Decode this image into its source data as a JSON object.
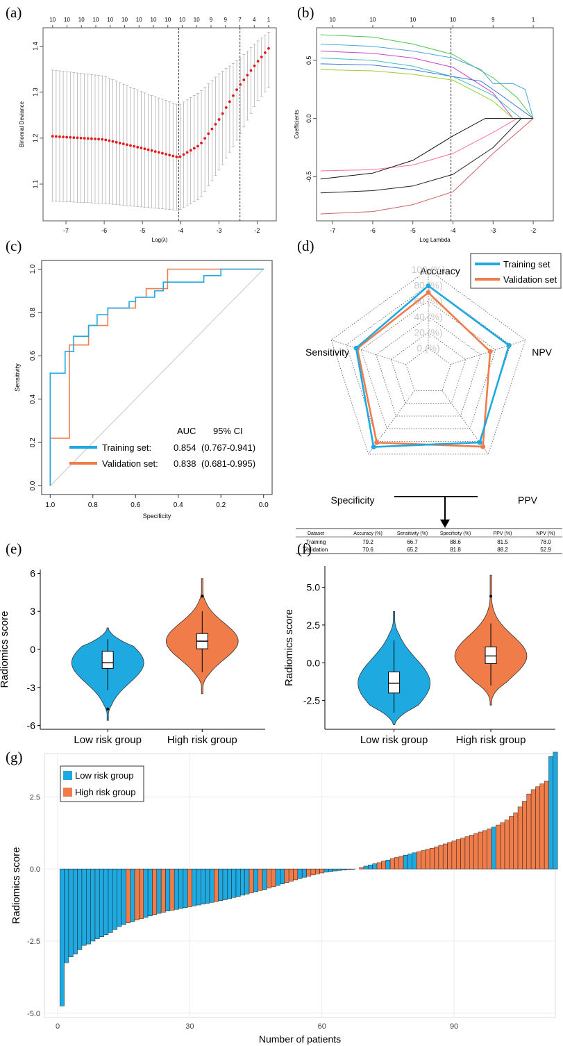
{
  "panel_labels": [
    "(a)",
    "(b)",
    "(c)",
    "(d)",
    "(e)",
    "(f)",
    "(g)"
  ],
  "chart_data": [
    {
      "id": "a",
      "type": "scatter",
      "xlabel": "Log(λ)",
      "ylabel": "Binomial Deviance",
      "xlim": [
        -7.6,
        -1.5
      ],
      "ylim": [
        1.02,
        1.44
      ],
      "xticks": [
        -7,
        -6,
        -5,
        -4,
        -3,
        -2
      ],
      "yticks": [
        1.1,
        1.2,
        1.3,
        1.4
      ],
      "top_ticks": [
        "10",
        "10",
        "10",
        "10",
        "10",
        "10",
        "10",
        "10",
        "10",
        "10",
        "10",
        "9",
        "9",
        "7",
        "4",
        "1"
      ],
      "vlines": [
        -4.05,
        -2.45
      ],
      "points_x_range": [
        -7.35,
        -1.7
      ],
      "mean_curve": [
        [
          -7.35,
          1.204
        ],
        [
          -6,
          1.197
        ],
        [
          -5,
          1.178
        ],
        [
          -4.05,
          1.158
        ],
        [
          -3.5,
          1.185
        ],
        [
          -3,
          1.24
        ],
        [
          -2.5,
          1.31
        ],
        [
          -2,
          1.365
        ],
        [
          -1.7,
          1.395
        ]
      ],
      "upper_curve": [
        [
          -7.35,
          1.348
        ],
        [
          -6,
          1.335
        ],
        [
          -5,
          1.3
        ],
        [
          -4.05,
          1.272
        ],
        [
          -3.5,
          1.3
        ],
        [
          -3,
          1.34
        ],
        [
          -2.5,
          1.37
        ],
        [
          -2,
          1.41
        ],
        [
          -1.7,
          1.43
        ]
      ],
      "lower_curve": [
        [
          -7.35,
          1.063
        ],
        [
          -6,
          1.058
        ],
        [
          -5,
          1.05
        ],
        [
          -4.05,
          1.043
        ],
        [
          -3.5,
          1.068
        ],
        [
          -3,
          1.13
        ],
        [
          -2.5,
          1.2
        ],
        [
          -2,
          1.28
        ],
        [
          -1.7,
          1.31
        ]
      ],
      "colors": {
        "points": "#e31a1c",
        "bars": "#9a9a9a",
        "line": "#000000"
      }
    },
    {
      "id": "b",
      "type": "line",
      "xlabel": "Log Lambda",
      "ylabel": "Coefficients",
      "xlim": [
        -7.4,
        -1.5
      ],
      "ylim": [
        -0.88,
        0.78
      ],
      "xticks": [
        -7,
        -6,
        -5,
        -4,
        -3,
        -2
      ],
      "yticks": [
        -0.5,
        0.0,
        0.5
      ],
      "top_ticks": [
        "10",
        "10",
        "10",
        "10",
        "9",
        "1"
      ],
      "top_tick_x": [
        -7,
        -6,
        -5,
        -4,
        -3,
        -2
      ],
      "vline": -4.05,
      "series": [
        {
          "color": "#4dc74d",
          "values": [
            [
              -7.3,
              0.72
            ],
            [
              -6,
              0.7
            ],
            [
              -5,
              0.64
            ],
            [
              -4,
              0.55
            ],
            [
              -3,
              0.35
            ],
            [
              -2.4,
              0.18
            ],
            [
              -2.0,
              0.0
            ]
          ]
        },
        {
          "color": "#4aa3df",
          "values": [
            [
              -7.3,
              0.64
            ],
            [
              -6,
              0.62
            ],
            [
              -5,
              0.58
            ],
            [
              -4,
              0.52
            ],
            [
              -3.3,
              0.42
            ],
            [
              -3,
              0.3
            ],
            [
              -2.5,
              0.3
            ],
            [
              -2.2,
              0.25
            ],
            [
              -2.0,
              0.0
            ]
          ]
        },
        {
          "color": "#cc44cc",
          "values": [
            [
              -7.3,
              0.58
            ],
            [
              -6,
              0.56
            ],
            [
              -5,
              0.52
            ],
            [
              -4,
              0.44
            ],
            [
              -3,
              0.22
            ],
            [
              -2.5,
              0.0
            ]
          ]
        },
        {
          "color": "#3fbfbf",
          "values": [
            [
              -7.3,
              0.52
            ],
            [
              -6,
              0.5
            ],
            [
              -5,
              0.45
            ],
            [
              -4,
              0.36
            ],
            [
              -3,
              0.2
            ],
            [
              -2.3,
              0.0
            ]
          ]
        },
        {
          "color": "#3b78d8",
          "values": [
            [
              -7.3,
              0.47
            ],
            [
              -6,
              0.46
            ],
            [
              -5,
              0.42
            ],
            [
              -4,
              0.36
            ],
            [
              -3.3,
              0.32
            ],
            [
              -2.8,
              0.2
            ],
            [
              -2.0,
              0.0
            ]
          ]
        },
        {
          "color": "#9acd32",
          "values": [
            [
              -7.3,
              0.42
            ],
            [
              -6,
              0.41
            ],
            [
              -5,
              0.38
            ],
            [
              -4,
              0.33
            ],
            [
              -3,
              0.15
            ],
            [
              -2.5,
              0.0
            ]
          ]
        },
        {
          "color": "#ff6fa0",
          "values": [
            [
              -7.3,
              -0.45
            ],
            [
              -6,
              -0.44
            ],
            [
              -5,
              -0.4
            ],
            [
              -4,
              -0.3
            ],
            [
              -3,
              -0.12
            ],
            [
              -2.4,
              0.0
            ]
          ]
        },
        {
          "color": "#111111",
          "values": [
            [
              -7.3,
              -0.52
            ],
            [
              -6,
              -0.47
            ],
            [
              -5,
              -0.36
            ],
            [
              -4,
              -0.15
            ],
            [
              -3.2,
              0.0
            ],
            [
              -2.0,
              0.0
            ]
          ]
        },
        {
          "color": "#222222",
          "values": [
            [
              -7.3,
              -0.64
            ],
            [
              -6,
              -0.62
            ],
            [
              -5,
              -0.58
            ],
            [
              -4,
              -0.48
            ],
            [
              -3,
              -0.25
            ],
            [
              -2.3,
              0.0
            ]
          ]
        },
        {
          "color": "#d06060",
          "values": [
            [
              -7.3,
              -0.82
            ],
            [
              -6,
              -0.8
            ],
            [
              -5,
              -0.74
            ],
            [
              -4,
              -0.63
            ],
            [
              -3,
              -0.3
            ],
            [
              -2.0,
              0.0
            ]
          ]
        }
      ]
    },
    {
      "id": "c",
      "type": "line",
      "xlabel": "Specificity",
      "ylabel": "Sensitivity",
      "xlim": [
        1.04,
        -0.04
      ],
      "ylim": [
        -0.04,
        1.04
      ],
      "xticks": [
        1.0,
        0.8,
        0.6,
        0.4,
        0.2,
        0.0
      ],
      "yticks": [
        0.0,
        0.2,
        0.4,
        0.6,
        0.8,
        1.0
      ],
      "legend": {
        "title_auc": "AUC",
        "title_ci": "95% CI",
        "entries": [
          {
            "name": "Training set:",
            "auc": "0.854",
            "ci": "(0.767-0.941)",
            "color": "#1fa9e1"
          },
          {
            "name": "Validation set:",
            "auc": "0.838",
            "ci": "(0.681-0.995)",
            "color": "#f07c4a"
          }
        ]
      },
      "series": [
        {
          "name": "Training set",
          "color": "#1fa9e1",
          "values": [
            [
              1,
              0
            ],
            [
              1,
              0.52
            ],
            [
              0.93,
              0.52
            ],
            [
              0.93,
              0.62
            ],
            [
              0.89,
              0.62
            ],
            [
              0.89,
              0.69
            ],
            [
              0.82,
              0.69
            ],
            [
              0.82,
              0.74
            ],
            [
              0.78,
              0.74
            ],
            [
              0.78,
              0.79
            ],
            [
              0.73,
              0.79
            ],
            [
              0.73,
              0.82
            ],
            [
              0.63,
              0.82
            ],
            [
              0.63,
              0.85
            ],
            [
              0.6,
              0.85
            ],
            [
              0.6,
              0.87
            ],
            [
              0.51,
              0.87
            ],
            [
              0.51,
              0.9
            ],
            [
              0.47,
              0.9
            ],
            [
              0.47,
              0.94
            ],
            [
              0.28,
              0.94
            ],
            [
              0.28,
              0.97
            ],
            [
              0.2,
              0.97
            ],
            [
              0.2,
              1.0
            ],
            [
              0,
              1.0
            ]
          ]
        },
        {
          "name": "Validation set",
          "color": "#f07c4a",
          "values": [
            [
              1,
              0
            ],
            [
              1,
              0.22
            ],
            [
              0.91,
              0.22
            ],
            [
              0.91,
              0.61
            ],
            [
              0.91,
              0.65
            ],
            [
              0.82,
              0.65
            ],
            [
              0.82,
              0.74
            ],
            [
              0.73,
              0.74
            ],
            [
              0.73,
              0.82
            ],
            [
              0.6,
              0.82
            ],
            [
              0.6,
              0.87
            ],
            [
              0.55,
              0.87
            ],
            [
              0.55,
              0.91
            ],
            [
              0.45,
              0.91
            ],
            [
              0.45,
              1.0
            ],
            [
              0,
              1.0
            ]
          ]
        }
      ]
    },
    {
      "id": "d",
      "type": "radar",
      "axes": [
        "Accuracy",
        "NPV",
        "PPV",
        "Specificity",
        "Sensitivity"
      ],
      "rings": [
        "100 (%)",
        "80 (%)",
        "60 (%)",
        "40 (%)",
        "20 (%)",
        "0 (%)"
      ],
      "series": [
        {
          "name": "Training set",
          "color": "#1fa9e1",
          "values": [
            79.2,
            78.0,
            81.5,
            88.6,
            66.7
          ]
        },
        {
          "name": "Validation set",
          "color": "#f07c4a",
          "values": [
            70.6,
            52.9,
            88.2,
            81.8,
            65.2
          ]
        }
      ],
      "table": {
        "headers": [
          "Dataset",
          "Accuracy (%)",
          "Sensitivity (%)",
          "Specificity (%)",
          "PPV (%)",
          "NPV (%)"
        ],
        "rows": [
          [
            "Training",
            "79.2",
            "66.7",
            "88.6",
            "81.5",
            "78.0"
          ],
          [
            "Validation",
            "70.6",
            "65.2",
            "81.8",
            "88.2",
            "52.9"
          ]
        ]
      }
    },
    {
      "id": "e",
      "type": "violin",
      "ylabel": "Radiomics score",
      "ylim": [
        -6.3,
        6.3
      ],
      "yticks": [
        6,
        3,
        0,
        -3,
        -6
      ],
      "ytick_labels": [
        "6",
        "3",
        "0",
        "-3",
        "-6"
      ],
      "categories": [
        "Low risk group",
        "High risk group"
      ],
      "groups": [
        {
          "color": "#1fa9e1",
          "q1": -1.5,
          "median": -1.05,
          "q3": -0.15,
          "wlo": -3.2,
          "whi": 0.8,
          "outliers": [
            -4.7
          ],
          "min": -5.6,
          "max": 1.7
        },
        {
          "color": "#f07c4a",
          "q1": 0.05,
          "median": 0.65,
          "q3": 1.25,
          "wlo": -1.8,
          "whi": 3.0,
          "outliers": [
            4.2
          ],
          "min": -3.5,
          "max": 5.6
        }
      ]
    },
    {
      "id": "f",
      "type": "violin",
      "ylabel": "Radiomics score",
      "ylim": [
        -4.4,
        6.4
      ],
      "yticks": [
        5.0,
        2.5,
        0.0,
        -2.5
      ],
      "ytick_labels": [
        "5.0",
        "2.5",
        "0.0",
        "-2.5"
      ],
      "categories": [
        "Low risk group",
        "High risk group"
      ],
      "groups": [
        {
          "color": "#1fa9e1",
          "q1": -2.0,
          "median": -1.35,
          "q3": -0.6,
          "wlo": -3.3,
          "whi": 1.5,
          "outliers": [],
          "min": -4.1,
          "max": 3.4
        },
        {
          "color": "#f07c4a",
          "q1": -0.05,
          "median": 0.45,
          "q3": 1.05,
          "wlo": -1.5,
          "whi": 2.6,
          "outliers": [
            4.4
          ],
          "min": -2.8,
          "max": 5.8
        }
      ]
    },
    {
      "id": "g",
      "type": "bar",
      "xlabel": "Number of patients",
      "ylabel": "Radiomics score",
      "xlim": [
        -3,
        113
      ],
      "ylim": [
        -5.15,
        4.0
      ],
      "xticks": [
        0,
        30,
        60,
        90
      ],
      "yticks": [
        2.5,
        0.0,
        -2.5,
        -5.0
      ],
      "ytick_labels": [
        "2.5",
        "0.0",
        "-2.5",
        "-5.0"
      ],
      "legend": [
        {
          "name": "Low risk group",
          "color": "#1fa9e1"
        },
        {
          "name": "High risk group",
          "color": "#f07c4a"
        }
      ],
      "high_risk_indices": [
        15,
        17,
        18,
        21,
        23,
        25,
        29,
        35,
        43,
        45,
        47,
        48,
        51,
        52,
        53,
        56,
        57,
        58,
        59,
        68,
        72,
        73,
        75,
        76,
        77,
        81,
        82,
        83,
        84,
        85,
        86,
        87,
        88,
        89,
        90,
        91,
        92,
        93,
        94,
        95,
        96,
        97,
        99,
        100,
        101,
        102,
        103,
        104,
        105,
        106,
        107,
        108,
        109,
        110
      ],
      "values": [
        -4.75,
        -3.25,
        -3.05,
        -2.95,
        -2.8,
        -2.65,
        -2.6,
        -2.5,
        -2.42,
        -2.35,
        -2.28,
        -2.2,
        -2.1,
        -2.0,
        -1.93,
        -1.87,
        -1.82,
        -1.77,
        -1.72,
        -1.68,
        -1.63,
        -1.58,
        -1.54,
        -1.5,
        -1.46,
        -1.43,
        -1.4,
        -1.37,
        -1.34,
        -1.31,
        -1.28,
        -1.25,
        -1.22,
        -1.19,
        -1.16,
        -1.13,
        -1.1,
        -1.07,
        -1.03,
        -0.99,
        -0.95,
        -0.91,
        -0.87,
        -0.83,
        -0.79,
        -0.75,
        -0.71,
        -0.66,
        -0.62,
        -0.57,
        -0.52,
        -0.47,
        -0.43,
        -0.38,
        -0.33,
        -0.29,
        -0.25,
        -0.21,
        -0.17,
        -0.14,
        -0.11,
        -0.09,
        -0.07,
        -0.05,
        -0.04,
        -0.02,
        -0.01,
        0.0,
        0.05,
        0.1,
        0.14,
        0.18,
        0.22,
        0.27,
        0.31,
        0.36,
        0.4,
        0.44,
        0.48,
        0.52,
        0.56,
        0.6,
        0.64,
        0.68,
        0.72,
        0.77,
        0.82,
        0.87,
        0.92,
        0.97,
        1.02,
        1.07,
        1.12,
        1.17,
        1.23,
        1.28,
        1.33,
        1.39,
        1.45,
        1.52,
        1.6,
        1.7,
        1.82,
        1.95,
        2.15,
        2.35,
        2.6,
        2.75,
        2.85,
        2.95,
        3.05,
        3.9,
        4.05
      ]
    }
  ]
}
